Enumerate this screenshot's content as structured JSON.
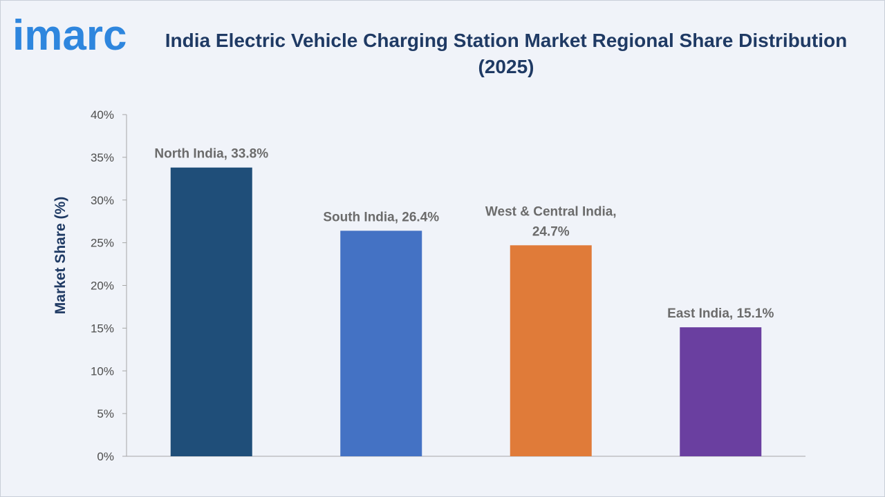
{
  "brand": {
    "logo_text": "imarc",
    "logo_color": "#2e86de"
  },
  "chart_data": {
    "type": "bar",
    "title": "India Electric Vehicle Charging Station Market Regional Share Distribution (2025)",
    "title_lines": [
      "India Electric Vehicle Charging Station Market Regional Share Distribution",
      "(2025)"
    ],
    "xlabel": "",
    "ylabel": "Market Share (%)",
    "ylim": [
      0,
      40
    ],
    "yticks": [
      0,
      5,
      10,
      15,
      20,
      25,
      30,
      35,
      40
    ],
    "ytick_labels": [
      "0%",
      "5%",
      "10%",
      "15%",
      "20%",
      "25%",
      "30%",
      "35%",
      "40%"
    ],
    "grid": false,
    "categories": [
      "North India",
      "South India",
      "West & Central India",
      "East India"
    ],
    "values": [
      33.8,
      26.4,
      24.7,
      15.1
    ],
    "data_labels": [
      [
        "North India, 33.8%"
      ],
      [
        "South India, 26.4%"
      ],
      [
        "West & Central India,",
        "24.7%"
      ],
      [
        "East India, 15.1%"
      ]
    ],
    "colors": [
      "#1f4e79",
      "#4472c4",
      "#e07b39",
      "#6a3fa0"
    ]
  }
}
